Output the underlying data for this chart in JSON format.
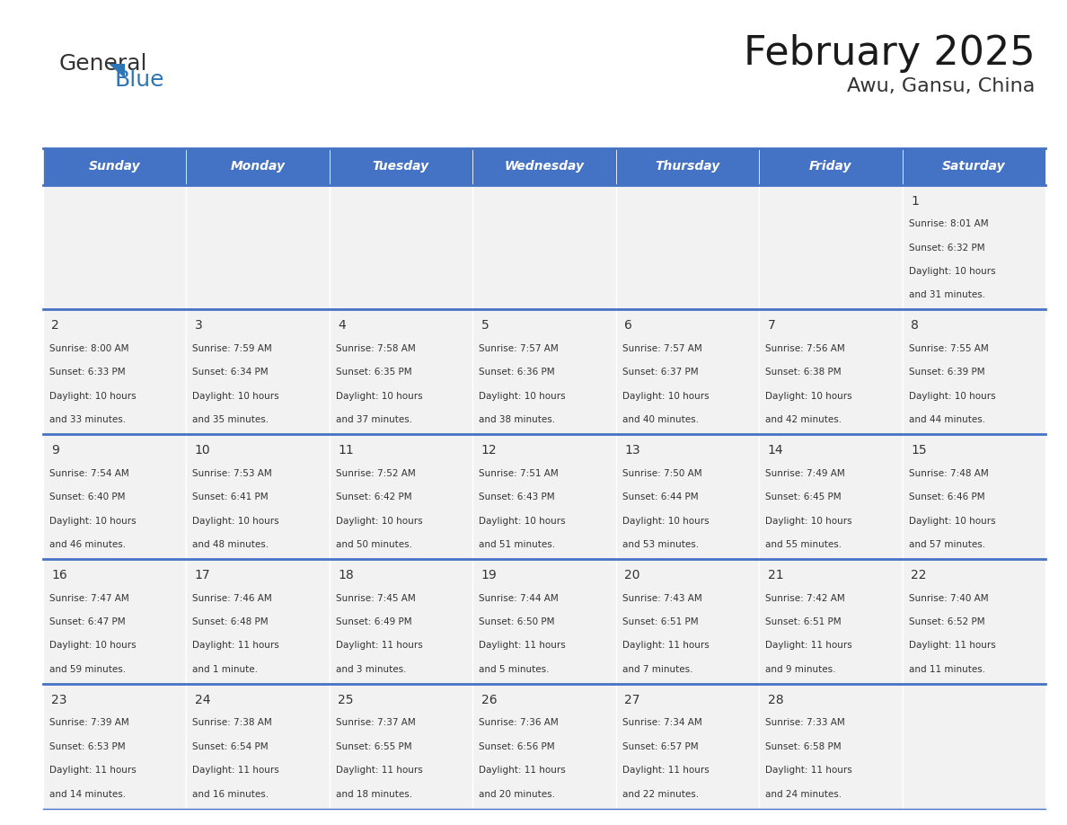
{
  "title": "February 2025",
  "subtitle": "Awu, Gansu, China",
  "days_of_week": [
    "Sunday",
    "Monday",
    "Tuesday",
    "Wednesday",
    "Thursday",
    "Friday",
    "Saturday"
  ],
  "header_bg": "#4472C4",
  "header_text": "#FFFFFF",
  "cell_bg_light": "#F2F2F2",
  "cell_bg_white": "#FFFFFF",
  "border_color": "#4472C4",
  "text_color": "#333333",
  "calendar_data": [
    [
      null,
      null,
      null,
      null,
      null,
      null,
      {
        "day": 1,
        "sunrise": "8:01 AM",
        "sunset": "6:32 PM",
        "daylight": "10 hours and 31 minutes."
      }
    ],
    [
      {
        "day": 2,
        "sunrise": "8:00 AM",
        "sunset": "6:33 PM",
        "daylight": "10 hours and 33 minutes."
      },
      {
        "day": 3,
        "sunrise": "7:59 AM",
        "sunset": "6:34 PM",
        "daylight": "10 hours and 35 minutes."
      },
      {
        "day": 4,
        "sunrise": "7:58 AM",
        "sunset": "6:35 PM",
        "daylight": "10 hours and 37 minutes."
      },
      {
        "day": 5,
        "sunrise": "7:57 AM",
        "sunset": "6:36 PM",
        "daylight": "10 hours and 38 minutes."
      },
      {
        "day": 6,
        "sunrise": "7:57 AM",
        "sunset": "6:37 PM",
        "daylight": "10 hours and 40 minutes."
      },
      {
        "day": 7,
        "sunrise": "7:56 AM",
        "sunset": "6:38 PM",
        "daylight": "10 hours and 42 minutes."
      },
      {
        "day": 8,
        "sunrise": "7:55 AM",
        "sunset": "6:39 PM",
        "daylight": "10 hours and 44 minutes."
      }
    ],
    [
      {
        "day": 9,
        "sunrise": "7:54 AM",
        "sunset": "6:40 PM",
        "daylight": "10 hours and 46 minutes."
      },
      {
        "day": 10,
        "sunrise": "7:53 AM",
        "sunset": "6:41 PM",
        "daylight": "10 hours and 48 minutes."
      },
      {
        "day": 11,
        "sunrise": "7:52 AM",
        "sunset": "6:42 PM",
        "daylight": "10 hours and 50 minutes."
      },
      {
        "day": 12,
        "sunrise": "7:51 AM",
        "sunset": "6:43 PM",
        "daylight": "10 hours and 51 minutes."
      },
      {
        "day": 13,
        "sunrise": "7:50 AM",
        "sunset": "6:44 PM",
        "daylight": "10 hours and 53 minutes."
      },
      {
        "day": 14,
        "sunrise": "7:49 AM",
        "sunset": "6:45 PM",
        "daylight": "10 hours and 55 minutes."
      },
      {
        "day": 15,
        "sunrise": "7:48 AM",
        "sunset": "6:46 PM",
        "daylight": "10 hours and 57 minutes."
      }
    ],
    [
      {
        "day": 16,
        "sunrise": "7:47 AM",
        "sunset": "6:47 PM",
        "daylight": "10 hours and 59 minutes."
      },
      {
        "day": 17,
        "sunrise": "7:46 AM",
        "sunset": "6:48 PM",
        "daylight": "11 hours and 1 minute."
      },
      {
        "day": 18,
        "sunrise": "7:45 AM",
        "sunset": "6:49 PM",
        "daylight": "11 hours and 3 minutes."
      },
      {
        "day": 19,
        "sunrise": "7:44 AM",
        "sunset": "6:50 PM",
        "daylight": "11 hours and 5 minutes."
      },
      {
        "day": 20,
        "sunrise": "7:43 AM",
        "sunset": "6:51 PM",
        "daylight": "11 hours and 7 minutes."
      },
      {
        "day": 21,
        "sunrise": "7:42 AM",
        "sunset": "6:51 PM",
        "daylight": "11 hours and 9 minutes."
      },
      {
        "day": 22,
        "sunrise": "7:40 AM",
        "sunset": "6:52 PM",
        "daylight": "11 hours and 11 minutes."
      }
    ],
    [
      {
        "day": 23,
        "sunrise": "7:39 AM",
        "sunset": "6:53 PM",
        "daylight": "11 hours and 14 minutes."
      },
      {
        "day": 24,
        "sunrise": "7:38 AM",
        "sunset": "6:54 PM",
        "daylight": "11 hours and 16 minutes."
      },
      {
        "day": 25,
        "sunrise": "7:37 AM",
        "sunset": "6:55 PM",
        "daylight": "11 hours and 18 minutes."
      },
      {
        "day": 26,
        "sunrise": "7:36 AM",
        "sunset": "6:56 PM",
        "daylight": "11 hours and 20 minutes."
      },
      {
        "day": 27,
        "sunrise": "7:34 AM",
        "sunset": "6:57 PM",
        "daylight": "11 hours and 22 minutes."
      },
      {
        "day": 28,
        "sunrise": "7:33 AM",
        "sunset": "6:58 PM",
        "daylight": "11 hours and 24 minutes."
      },
      null
    ]
  ],
  "logo_text1": "General",
  "logo_text2": "Blue",
  "logo_color1": "#333333",
  "logo_color2": "#2E75B6",
  "logo_triangle_color": "#2E75B6"
}
